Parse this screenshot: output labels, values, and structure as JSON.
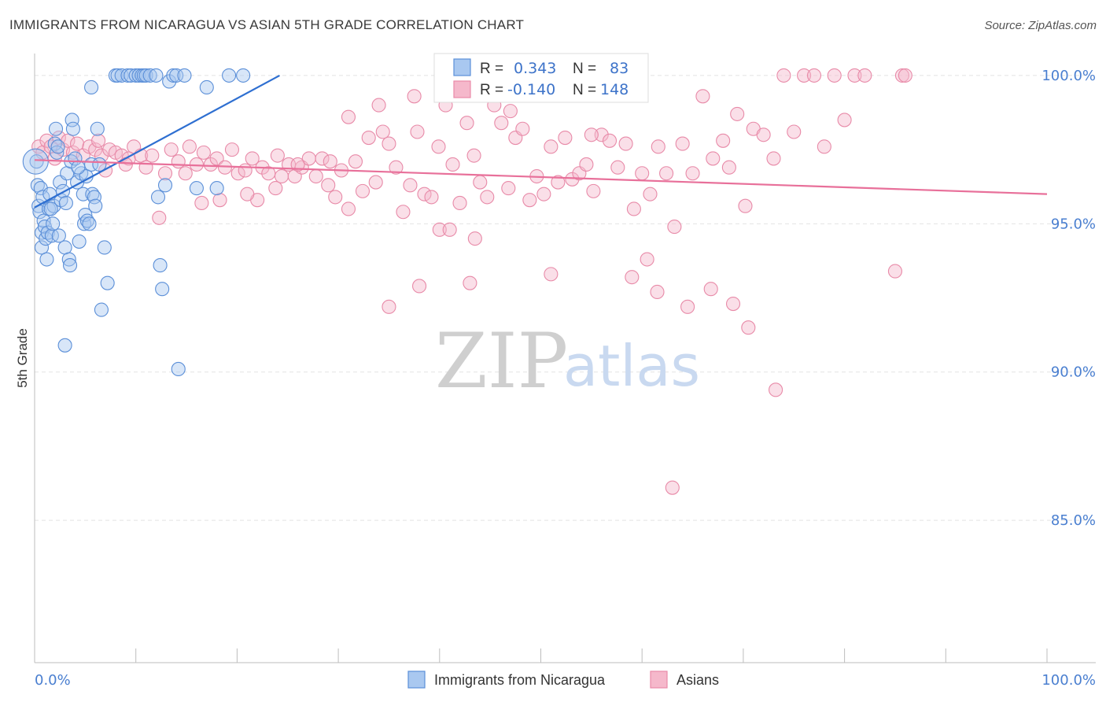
{
  "title": "IMMIGRANTS FROM NICARAGUA VS ASIAN 5TH GRADE CORRELATION CHART",
  "source": "Source: ZipAtlas.com",
  "watermark": {
    "zip": "ZIP",
    "atlas": "atlas"
  },
  "colors": {
    "blue_fill": "#a9c8f0",
    "blue_stroke": "#5b8fd8",
    "blue_line": "#2e6fd1",
    "pink_fill": "#f5b8cb",
    "pink_stroke": "#e88aa8",
    "pink_line": "#e8709a",
    "grid": "#e3e3e3",
    "tick_text": "#4a7fd0"
  },
  "stats": {
    "blue": {
      "r_label": "R =",
      "r_value": "0.343",
      "n_label": "N =",
      "n_value": "83"
    },
    "pink": {
      "r_label": "R =",
      "r_value": "-0.140",
      "n_label": "N =",
      "n_value": "148"
    }
  },
  "legend": {
    "blue": "Immigrants from Nicaragua",
    "pink": "Asians"
  },
  "chart_data": {
    "type": "scatter",
    "title": "IMMIGRANTS FROM NICARAGUA VS ASIAN 5TH GRADE CORRELATION CHART",
    "xlabel": "",
    "ylabel": "5th Grade",
    "xlim": [
      0,
      100
    ],
    "ylim": [
      80.2,
      100.9
    ],
    "x_tick_labels": [
      "0.0%",
      "100.0%"
    ],
    "y_ticks": [
      85,
      90,
      95,
      100
    ],
    "y_tick_labels": [
      "85.0%",
      "90.0%",
      "95.0%",
      "100.0%"
    ],
    "grid": true,
    "legend_position": "bottom-center",
    "series": [
      {
        "name": "Immigrants from Nicaragua",
        "color": "#a9c8f0",
        "trend": {
          "x": [
            0,
            24.2
          ],
          "y": [
            95.55,
            100.0
          ]
        },
        "points": [
          [
            0.2,
            97.1
          ],
          [
            0.3,
            96.3
          ],
          [
            0.4,
            95.6
          ],
          [
            0.5,
            95.4
          ],
          [
            0.6,
            96.2
          ],
          [
            0.7,
            94.7
          ],
          [
            0.7,
            94.2
          ],
          [
            0.8,
            95.9
          ],
          [
            0.9,
            95.1
          ],
          [
            1.0,
            94.9
          ],
          [
            1.1,
            94.5
          ],
          [
            1.2,
            93.8
          ],
          [
            1.3,
            94.7
          ],
          [
            1.4,
            95.5
          ],
          [
            1.5,
            96.0
          ],
          [
            1.7,
            94.6
          ],
          [
            1.8,
            95.0
          ],
          [
            1.9,
            95.6
          ],
          [
            2.0,
            97.7
          ],
          [
            2.1,
            98.2
          ],
          [
            2.2,
            97.4
          ],
          [
            2.3,
            97.6
          ],
          [
            2.5,
            96.4
          ],
          [
            2.6,
            95.8
          ],
          [
            2.8,
            96.1
          ],
          [
            3.0,
            94.2
          ],
          [
            3.2,
            96.7
          ],
          [
            3.4,
            93.8
          ],
          [
            3.5,
            93.6
          ],
          [
            3.6,
            97.1
          ],
          [
            3.7,
            98.5
          ],
          [
            3.8,
            98.2
          ],
          [
            4.0,
            97.2
          ],
          [
            4.2,
            96.4
          ],
          [
            4.4,
            94.4
          ],
          [
            4.6,
            96.7
          ],
          [
            4.8,
            96.0
          ],
          [
            4.9,
            95.0
          ],
          [
            5.0,
            95.3
          ],
          [
            5.1,
            96.6
          ],
          [
            5.2,
            95.1
          ],
          [
            5.4,
            95.0
          ],
          [
            5.6,
            97.0
          ],
          [
            5.7,
            96.0
          ],
          [
            5.9,
            95.9
          ],
          [
            6.0,
            95.6
          ],
          [
            6.2,
            98.2
          ],
          [
            6.4,
            97.0
          ],
          [
            6.6,
            92.1
          ],
          [
            6.9,
            94.2
          ],
          [
            7.2,
            93.0
          ],
          [
            8.0,
            100.0
          ],
          [
            8.2,
            100.0
          ],
          [
            8.6,
            100.0
          ],
          [
            9.2,
            100.0
          ],
          [
            9.5,
            100.0
          ],
          [
            10.0,
            100.0
          ],
          [
            10.3,
            100.0
          ],
          [
            10.6,
            100.0
          ],
          [
            10.8,
            100.0
          ],
          [
            11.0,
            100.0
          ],
          [
            11.4,
            100.0
          ],
          [
            12.0,
            100.0
          ],
          [
            12.2,
            95.9
          ],
          [
            12.4,
            93.6
          ],
          [
            12.6,
            92.8
          ],
          [
            12.9,
            96.3
          ],
          [
            13.3,
            99.8
          ],
          [
            13.7,
            100.0
          ],
          [
            14.0,
            100.0
          ],
          [
            14.2,
            90.1
          ],
          [
            14.8,
            100.0
          ],
          [
            16.0,
            96.2
          ],
          [
            17.0,
            99.6
          ],
          [
            18.0,
            96.2
          ],
          [
            19.2,
            100.0
          ],
          [
            20.6,
            100.0
          ],
          [
            3.0,
            90.9
          ],
          [
            5.6,
            99.6
          ],
          [
            1.6,
            95.5
          ],
          [
            2.4,
            94.6
          ],
          [
            4.3,
            96.9
          ],
          [
            3.1,
            95.7
          ]
        ]
      },
      {
        "name": "Asians",
        "color": "#f5b8cb",
        "trend": {
          "x": [
            0,
            100
          ],
          "y": [
            97.15,
            96.0
          ]
        },
        "points": [
          [
            0.4,
            97.6
          ],
          [
            0.8,
            97.4
          ],
          [
            1.2,
            97.8
          ],
          [
            1.6,
            97.6
          ],
          [
            2.0,
            97.2
          ],
          [
            2.4,
            97.9
          ],
          [
            2.8,
            97.5
          ],
          [
            3.3,
            97.8
          ],
          [
            3.8,
            97.4
          ],
          [
            4.2,
            97.7
          ],
          [
            4.8,
            97.3
          ],
          [
            5.4,
            97.6
          ],
          [
            6.0,
            97.5
          ],
          [
            6.6,
            97.3
          ],
          [
            7.0,
            96.8
          ],
          [
            7.4,
            97.5
          ],
          [
            8.0,
            97.4
          ],
          [
            8.6,
            97.3
          ],
          [
            9.3,
            97.2
          ],
          [
            9.8,
            97.6
          ],
          [
            10.5,
            97.3
          ],
          [
            11.0,
            96.9
          ],
          [
            11.6,
            97.3
          ],
          [
            12.3,
            95.2
          ],
          [
            12.9,
            96.7
          ],
          [
            13.5,
            97.5
          ],
          [
            14.2,
            97.1
          ],
          [
            14.9,
            96.7
          ],
          [
            15.3,
            97.6
          ],
          [
            16.0,
            97.0
          ],
          [
            16.7,
            97.4
          ],
          [
            17.4,
            97.0
          ],
          [
            18.0,
            97.2
          ],
          [
            18.8,
            96.9
          ],
          [
            19.5,
            97.5
          ],
          [
            20.1,
            96.7
          ],
          [
            20.8,
            96.8
          ],
          [
            21.5,
            97.2
          ],
          [
            22.0,
            95.8
          ],
          [
            22.5,
            96.9
          ],
          [
            23.1,
            96.7
          ],
          [
            23.8,
            96.2
          ],
          [
            24.4,
            96.6
          ],
          [
            25.1,
            97.0
          ],
          [
            25.7,
            96.6
          ],
          [
            26.4,
            96.9
          ],
          [
            27.1,
            97.2
          ],
          [
            27.8,
            96.6
          ],
          [
            28.4,
            97.2
          ],
          [
            29.0,
            96.3
          ],
          [
            29.7,
            95.9
          ],
          [
            30.3,
            96.8
          ],
          [
            31.0,
            95.5
          ],
          [
            31.7,
            97.1
          ],
          [
            32.4,
            96.1
          ],
          [
            33.0,
            97.9
          ],
          [
            33.7,
            96.4
          ],
          [
            34.4,
            98.1
          ],
          [
            35.0,
            97.7
          ],
          [
            35.7,
            96.9
          ],
          [
            36.4,
            95.4
          ],
          [
            37.1,
            96.3
          ],
          [
            37.8,
            98.1
          ],
          [
            38.5,
            96.0
          ],
          [
            39.2,
            95.9
          ],
          [
            39.9,
            97.6
          ],
          [
            40.6,
            99.0
          ],
          [
            41.3,
            97.0
          ],
          [
            42.0,
            95.7
          ],
          [
            42.7,
            98.4
          ],
          [
            43.4,
            97.3
          ],
          [
            44.0,
            96.4
          ],
          [
            44.7,
            95.9
          ],
          [
            45.4,
            99.0
          ],
          [
            46.1,
            98.4
          ],
          [
            46.8,
            96.2
          ],
          [
            47.5,
            97.9
          ],
          [
            48.2,
            98.2
          ],
          [
            48.9,
            95.8
          ],
          [
            49.6,
            96.6
          ],
          [
            50.3,
            96.0
          ],
          [
            51.0,
            97.6
          ],
          [
            51.7,
            96.4
          ],
          [
            52.4,
            97.9
          ],
          [
            53.1,
            96.5
          ],
          [
            53.8,
            96.7
          ],
          [
            54.5,
            97.0
          ],
          [
            55.2,
            96.1
          ],
          [
            56.0,
            98.0
          ],
          [
            56.8,
            97.8
          ],
          [
            57.6,
            96.9
          ],
          [
            58.4,
            97.7
          ],
          [
            59.2,
            95.5
          ],
          [
            60.0,
            96.7
          ],
          [
            60.8,
            96.0
          ],
          [
            61.6,
            97.6
          ],
          [
            62.4,
            96.7
          ],
          [
            63.2,
            94.9
          ],
          [
            64.0,
            97.7
          ],
          [
            65.0,
            96.7
          ],
          [
            66.0,
            99.3
          ],
          [
            67.0,
            97.2
          ],
          [
            68.0,
            97.8
          ],
          [
            68.6,
            96.9
          ],
          [
            69.4,
            98.7
          ],
          [
            70.2,
            95.6
          ],
          [
            71.0,
            98.2
          ],
          [
            72.0,
            98.0
          ],
          [
            73.0,
            97.2
          ],
          [
            74.0,
            100.0
          ],
          [
            75.0,
            98.1
          ],
          [
            76.0,
            100.0
          ],
          [
            77.0,
            100.0
          ],
          [
            78.0,
            97.6
          ],
          [
            79.0,
            100.0
          ],
          [
            80.0,
            98.5
          ],
          [
            81.0,
            100.0
          ],
          [
            82.0,
            100.0
          ],
          [
            85.7,
            100.0
          ],
          [
            86.0,
            100.0
          ],
          [
            34.0,
            99.0
          ],
          [
            38.0,
            92.9
          ],
          [
            43.0,
            93.0
          ],
          [
            35.0,
            92.2
          ],
          [
            40.0,
            94.8
          ],
          [
            43.5,
            94.5
          ],
          [
            41.0,
            94.8
          ],
          [
            51.0,
            93.3
          ],
          [
            59.0,
            93.2
          ],
          [
            60.5,
            93.8
          ],
          [
            61.5,
            92.7
          ],
          [
            64.5,
            92.2
          ],
          [
            66.8,
            92.8
          ],
          [
            69.0,
            92.3
          ],
          [
            70.5,
            91.5
          ],
          [
            73.2,
            89.4
          ],
          [
            63.0,
            86.1
          ],
          [
            85.0,
            93.4
          ],
          [
            37.5,
            99.3
          ],
          [
            47.0,
            98.8
          ],
          [
            31.0,
            98.6
          ],
          [
            55.0,
            98.0
          ],
          [
            58.0,
            99.5
          ],
          [
            24.0,
            97.3
          ],
          [
            26.0,
            97.0
          ],
          [
            29.2,
            97.1
          ],
          [
            16.5,
            95.7
          ],
          [
            21.0,
            96.0
          ],
          [
            18.3,
            95.8
          ],
          [
            9.0,
            97.0
          ],
          [
            6.3,
            97.8
          ]
        ]
      }
    ]
  }
}
